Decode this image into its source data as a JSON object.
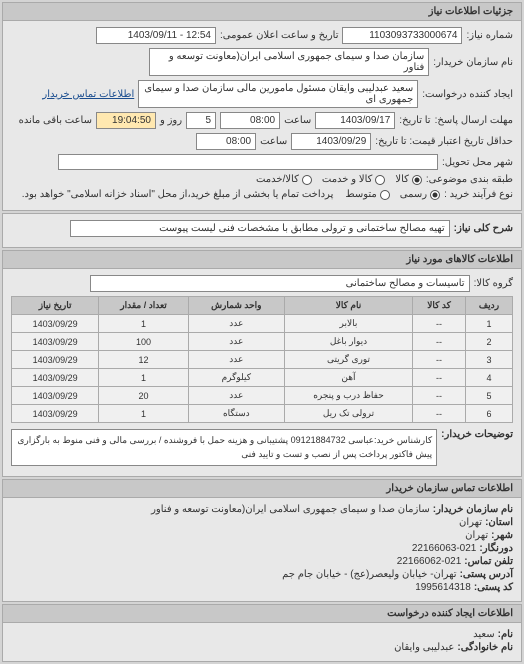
{
  "panel1": {
    "title": "جزئیات اطلاعات نیاز",
    "need_number_label": "شماره نیاز:",
    "need_number": "1103093733000674",
    "announce_date_label": "تاریخ و ساعت اعلان عمومی:",
    "announce_date": "12:54 - 1403/09/11",
    "buyer_name_label": "نام سازمان خریدار:",
    "buyer_name": "سازمان صدا و سیمای جمهوری اسلامی ایران(معاونت توسعه و فناور",
    "creator_label": "ایجاد کننده درخواست:",
    "creator": "سعید عبدلیبی وایقان مسئول مامورین مالی  سازمان صدا و سیمای جمهوری ای",
    "contact_link": "اطلاعات تماس خریدار",
    "response_deadline_label": "مهلت ارسال پاسخ:",
    "response_deadline_note": "تا تاریخ:",
    "response_date": "1403/09/17",
    "response_time_label": "ساعت",
    "response_time": "08:00",
    "remain_days": "5",
    "remain_days_label": "روز و",
    "remain_time": "19:04:50",
    "remain_label": "ساعت باقی مانده",
    "price_deadline_label": "حداقل تاریخ اعتبار قیمت: تا تاریخ:",
    "price_date": "1403/09/29",
    "price_time_label": "ساعت",
    "price_time": "08:00",
    "delivery_city_label": "شهر محل تحویل:",
    "delivery_city": "",
    "classification_label": "طبقه بندی موضوعی:",
    "class_goods": "کالا",
    "class_service": "کالا و خدمت",
    "class_service_only": "کالا/خدمت",
    "purchase_type_label": "نوع فرآیند خرید :",
    "purchase_type1": "رسمی",
    "purchase_type2": "متوسط",
    "purchase_note": "پرداخت تمام یا بخشی از مبلغ خرید،از محل \"اسناد خزانه اسلامی\" خواهد بود."
  },
  "panel2": {
    "need_title_label": "شرح کلی نیاز:",
    "need_title": "تهیه مصالح ساختمانی و ترولی مطابق با مشخصات فنی لیست پیوست"
  },
  "panel3": {
    "title": "اطلاعات کالاهای مورد نیاز",
    "group_label": "گروه کالا:",
    "group": "تاسیسات و مصالح ساختمانی",
    "columns": [
      "ردیف",
      "کد کالا",
      "نام کالا",
      "واحد شمارش",
      "تعداد / مقدار",
      "تاریخ نیاز"
    ],
    "rows": [
      [
        "1",
        "--",
        "بالابر",
        "عدد",
        "1",
        "1403/09/29"
      ],
      [
        "2",
        "--",
        "دیوار باغل",
        "عدد",
        "100",
        "1403/09/29"
      ],
      [
        "3",
        "--",
        "توری گریتی",
        "عدد",
        "12",
        "1403/09/29"
      ],
      [
        "4",
        "--",
        "آهن",
        "کیلوگرم",
        "1",
        "1403/09/29"
      ],
      [
        "5",
        "--",
        "حفاظ درب و پنجره",
        "عدد",
        "20",
        "1403/09/29"
      ],
      [
        "6",
        "--",
        "ترولی تک ریل",
        "دستگاه",
        "1",
        "1403/09/29"
      ]
    ],
    "desc_label": "توضیحات خریدار:",
    "desc": "کارشناس خرید:عباسی 09121884732 پشتیبانی و هزینه حمل با فروشنده / بررسی مالی و فنی منوط به بارگزاری پیش فاکتور پرداخت پس از نصب و تست و تایید فنی"
  },
  "panel4": {
    "title": "اطلاعات تماس سازمان خریدار",
    "org_label": "نام سازمان خریدار:",
    "org": "سازمان صدا و سیمای جمهوری اسلامی ایران(معاونت توسعه و فناور",
    "state_label": "استان:",
    "state": "تهران",
    "city_label": "شهر:",
    "city": "تهران",
    "prefix_label": "دورنگار:",
    "prefix": "22166063-021",
    "phone_label": "تلفن تماس:",
    "phone": "22166062-021",
    "address_label": "آدرس پستی:",
    "address": "تهران- خیابان ولیعصر(عج) - خیابان جام جم",
    "postal_label": "کد پستی:",
    "postal": "1995614318"
  },
  "panel5": {
    "title": "اطلاعات ایجاد کننده درخواست",
    "name_label": "نام:",
    "name": "سعید",
    "family_label": "نام خانوادگی:",
    "family": "عبدلیبی وایقان"
  },
  "colors": {
    "bg": "#d4d4d4",
    "panel_bg": "#e8e8e8",
    "header_bg": "#c8c8c8",
    "border": "#aaa"
  }
}
